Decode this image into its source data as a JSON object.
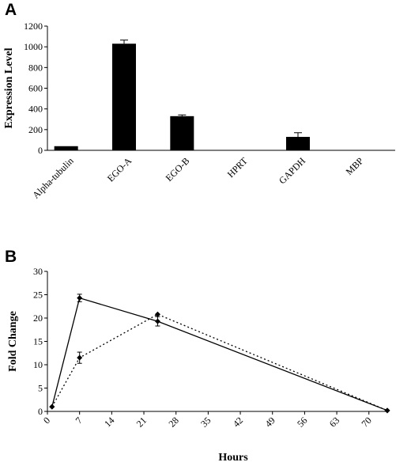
{
  "figure": {
    "panel_a_label": "A",
    "panel_b_label": "B"
  },
  "chart_data": [
    {
      "type": "bar",
      "panel": "A",
      "title": "",
      "xlabel": "",
      "ylabel": "Expression Level",
      "ylim": [
        0,
        1200
      ],
      "yticks": [
        0,
        200,
        400,
        600,
        800,
        1000,
        1200
      ],
      "categories": [
        "Alpha-tubulin",
        "EGO-A",
        "EGO-B",
        "HPRT",
        "GAPDH",
        "MBP"
      ],
      "values": [
        40,
        1030,
        330,
        0,
        130,
        0
      ],
      "errors": [
        0,
        35,
        12,
        0,
        40,
        0
      ],
      "bar_color": "#000000",
      "grid": false
    },
    {
      "type": "line",
      "panel": "B",
      "title": "",
      "xlabel": "Hours",
      "ylabel": "Fold Change",
      "xlim": [
        0,
        74
      ],
      "ylim": [
        0,
        30
      ],
      "xticks": [
        0,
        7,
        14,
        21,
        28,
        35,
        42,
        49,
        56,
        63,
        70
      ],
      "yticks": [
        0,
        5,
        10,
        15,
        20,
        25,
        30
      ],
      "grid": false,
      "series": [
        {
          "style": "solid",
          "x": [
            1,
            7,
            24,
            74
          ],
          "y": [
            1,
            24.3,
            19.3,
            0.2
          ],
          "errors": [
            0,
            0.8,
            1.0,
            0
          ],
          "color": "#000000"
        },
        {
          "style": "dotted",
          "x": [
            1,
            7,
            24,
            74
          ],
          "y": [
            1,
            11.5,
            20.8,
            0.2
          ],
          "errors": [
            0,
            1.2,
            0,
            0
          ],
          "color": "#000000"
        }
      ]
    }
  ]
}
